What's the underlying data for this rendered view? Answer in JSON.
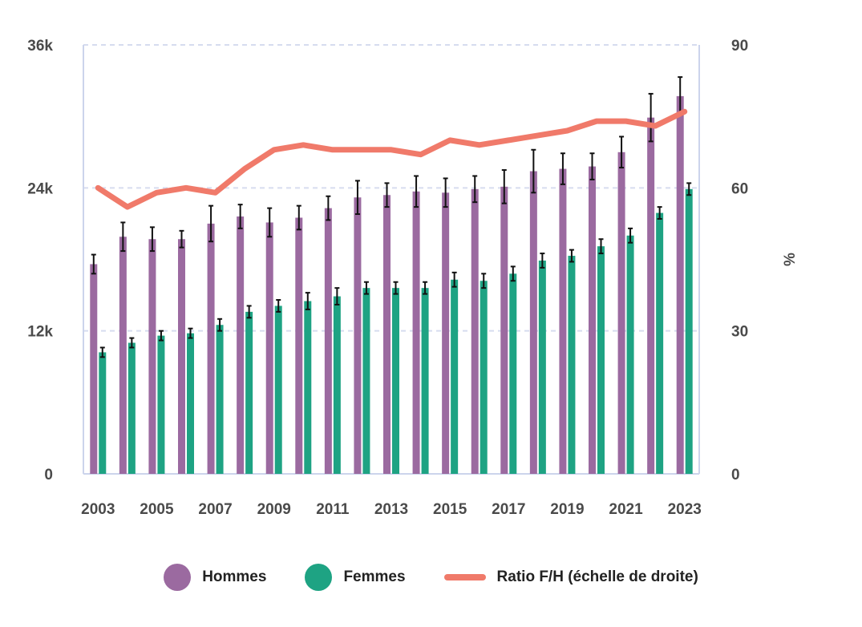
{
  "chart_data": {
    "type": "bar",
    "x": [
      2003,
      2004,
      2005,
      2006,
      2007,
      2008,
      2009,
      2010,
      2011,
      2012,
      2013,
      2014,
      2015,
      2016,
      2017,
      2018,
      2019,
      2020,
      2021,
      2022,
      2023
    ],
    "x_tick_labels": [
      "2003",
      "2005",
      "2007",
      "2009",
      "2011",
      "2013",
      "2015",
      "2017",
      "2019",
      "2021",
      "2023"
    ],
    "y_left": {
      "ylim": [
        0,
        36000
      ],
      "ticks": [
        "0",
        "12k",
        "24k",
        "36k"
      ]
    },
    "y_right": {
      "ylim": [
        0,
        90
      ],
      "ticks": [
        "0",
        "30",
        "60",
        "90"
      ],
      "ylabel": "%"
    },
    "series": [
      {
        "name": "Hommes",
        "type": "bar",
        "color": "#9b6aa0",
        "axis": "left",
        "values": [
          17600,
          19900,
          19700,
          19700,
          21000,
          21600,
          21100,
          21500,
          22300,
          23200,
          23400,
          23700,
          23600,
          23900,
          24100,
          25400,
          25600,
          25800,
          27000,
          29900,
          31700
        ],
        "error": [
          800,
          1200,
          1000,
          700,
          1500,
          1000,
          1200,
          1000,
          1000,
          1400,
          1000,
          1300,
          1200,
          1100,
          1400,
          1800,
          1300,
          1100,
          1300,
          2000,
          1600
        ]
      },
      {
        "name": "Femmes",
        "type": "bar",
        "color": "#1ea383",
        "axis": "left",
        "values": [
          10200,
          11000,
          11600,
          11800,
          12500,
          13600,
          14100,
          14500,
          14900,
          15600,
          15600,
          15600,
          16300,
          16200,
          16800,
          17900,
          18300,
          19100,
          20000,
          21900,
          23900
        ],
        "error": [
          400,
          400,
          400,
          400,
          500,
          500,
          500,
          700,
          700,
          500,
          500,
          500,
          600,
          600,
          600,
          600,
          500,
          600,
          600,
          500,
          500
        ]
      },
      {
        "name": "Ratio F/H (échelle de droite)",
        "type": "line",
        "color": "#f07a6a",
        "axis": "right",
        "values": [
          60,
          56,
          59,
          60,
          59,
          64,
          68,
          69,
          68,
          68,
          68,
          67,
          70,
          69,
          70,
          71,
          72,
          74,
          74,
          73,
          76
        ]
      }
    ],
    "grid": "horizontal dashed",
    "legend_position": "bottom-center"
  }
}
